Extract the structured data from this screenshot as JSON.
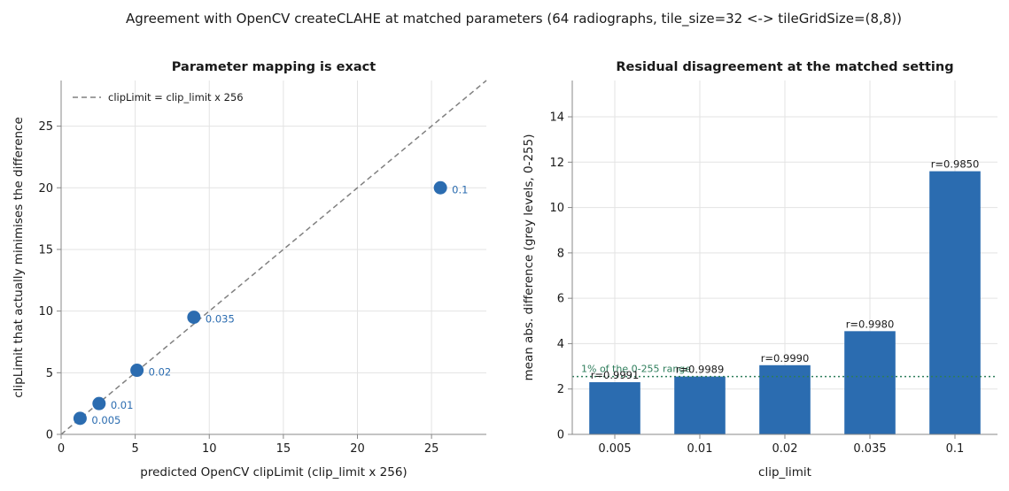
{
  "figure_title": "Agreement with OpenCV createCLAHE at matched parameters (64 radiographs, tile_size=32 <-> tileGridSize=(8,8))",
  "colors": {
    "point": "#2b6cb0",
    "bar": "#2b6cb0",
    "identity_line": "#808080",
    "reference_line": "#2e7d5b"
  },
  "chart_data": [
    {
      "type": "scatter",
      "title": "Parameter mapping is exact",
      "xlabel": "predicted OpenCV clipLimit  (clip_limit x 256)",
      "ylabel": "clipLimit that actually minimises the difference",
      "xlim": [
        0,
        28.7
      ],
      "ylim": [
        0,
        28.7
      ],
      "xticks": [
        0,
        5,
        10,
        15,
        20,
        25
      ],
      "yticks": [
        0,
        5,
        10,
        15,
        20,
        25
      ],
      "grid": true,
      "legend": {
        "placement": "top-left",
        "entries": [
          "clipLimit = clip_limit x 256"
        ]
      },
      "identity_line": {
        "label": "clipLimit = clip_limit x 256",
        "style": "dashed"
      },
      "points": [
        {
          "x": 1.28,
          "y": 1.3,
          "label": "0.005"
        },
        {
          "x": 2.56,
          "y": 2.5,
          "label": "0.01"
        },
        {
          "x": 5.12,
          "y": 5.2,
          "label": "0.02"
        },
        {
          "x": 8.96,
          "y": 9.5,
          "label": "0.035"
        },
        {
          "x": 25.6,
          "y": 20.0,
          "label": "0.1"
        }
      ]
    },
    {
      "type": "bar",
      "title": "Residual disagreement at the matched setting",
      "xlabel": "clip_limit",
      "ylabel": "mean abs. difference  (grey levels, 0-255)",
      "categories": [
        "0.005",
        "0.01",
        "0.02",
        "0.035",
        "0.1"
      ],
      "values": [
        2.3,
        2.55,
        3.05,
        4.55,
        11.6
      ],
      "bar_labels": [
        "r=0.9991",
        "r=0.9989",
        "r=0.9990",
        "r=0.9980",
        "r=0.9850"
      ],
      "ylim": [
        0,
        15.6
      ],
      "yticks": [
        0,
        2,
        4,
        6,
        8,
        10,
        12,
        14
      ],
      "grid": true,
      "reference_line": {
        "y": 2.55,
        "label": "1% of the 0-255 range",
        "style": "dotted"
      }
    }
  ]
}
